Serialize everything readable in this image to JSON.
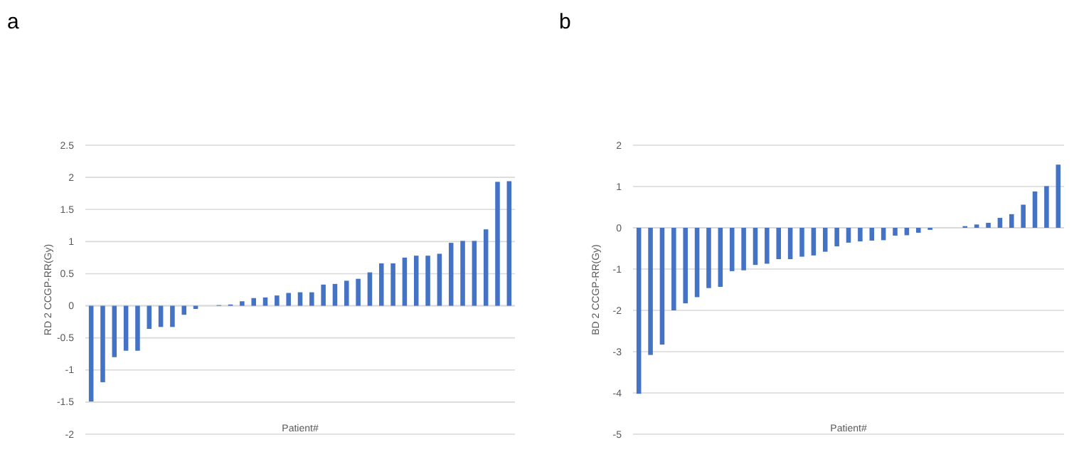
{
  "chart_data": [
    {
      "type": "bar",
      "title": "a",
      "xlabel": "Patient#",
      "ylabel": "RD 2 CCGP-RR(Gy)",
      "color": "#4472c4",
      "grid": "y",
      "categories": [
        null,
        null,
        null,
        null,
        null,
        null,
        null,
        null,
        null,
        null,
        null,
        null,
        null,
        null,
        null,
        null,
        null,
        null,
        null,
        null,
        null,
        null,
        null,
        null,
        null,
        null,
        null,
        null,
        null,
        null,
        null,
        null,
        null,
        null,
        null,
        null,
        null
      ],
      "values": [
        -1.49,
        -1.19,
        -0.8,
        -0.7,
        -0.7,
        -0.36,
        -0.33,
        -0.33,
        -0.14,
        -0.05,
        0,
        0.01,
        0.02,
        0.07,
        0.12,
        0.13,
        0.16,
        0.2,
        0.21,
        0.21,
        0.33,
        0.34,
        0.39,
        0.42,
        0.52,
        0.66,
        0.66,
        0.75,
        0.78,
        0.78,
        0.81,
        0.98,
        1.01,
        1.01,
        1.19,
        1.93,
        1.94
      ],
      "ylim": [
        -2,
        2.5
      ],
      "yticks": [
        -2,
        -1.5,
        -1,
        -0.5,
        0,
        0.5,
        1,
        1.5,
        2,
        2.5
      ]
    },
    {
      "type": "bar",
      "title": "b",
      "xlabel": "Patient#",
      "ylabel": "BD 2 CCGP-RR(Gy)",
      "color": "#4472c4",
      "grid": "y",
      "categories": [
        null,
        null,
        null,
        null,
        null,
        null,
        null,
        null,
        null,
        null,
        null,
        null,
        null,
        null,
        null,
        null,
        null,
        null,
        null,
        null,
        null,
        null,
        null,
        null,
        null,
        null,
        null,
        null,
        null,
        null,
        null,
        null,
        null,
        null,
        null,
        null,
        null
      ],
      "values": [
        -4.02,
        -3.08,
        -2.83,
        -2.0,
        -1.83,
        -1.68,
        -1.46,
        -1.43,
        -1.05,
        -1.03,
        -0.9,
        -0.87,
        -0.76,
        -0.76,
        -0.7,
        -0.67,
        -0.58,
        -0.45,
        -0.36,
        -0.33,
        -0.31,
        -0.3,
        -0.19,
        -0.18,
        -0.12,
        -0.05,
        0,
        0,
        0.04,
        0.08,
        0.12,
        0.24,
        0.33,
        0.56,
        0.88,
        1.01,
        1.53
      ],
      "ylim": [
        -5,
        2
      ],
      "yticks": [
        -5,
        -4,
        -3,
        -2,
        -1,
        0,
        1,
        2
      ]
    }
  ]
}
